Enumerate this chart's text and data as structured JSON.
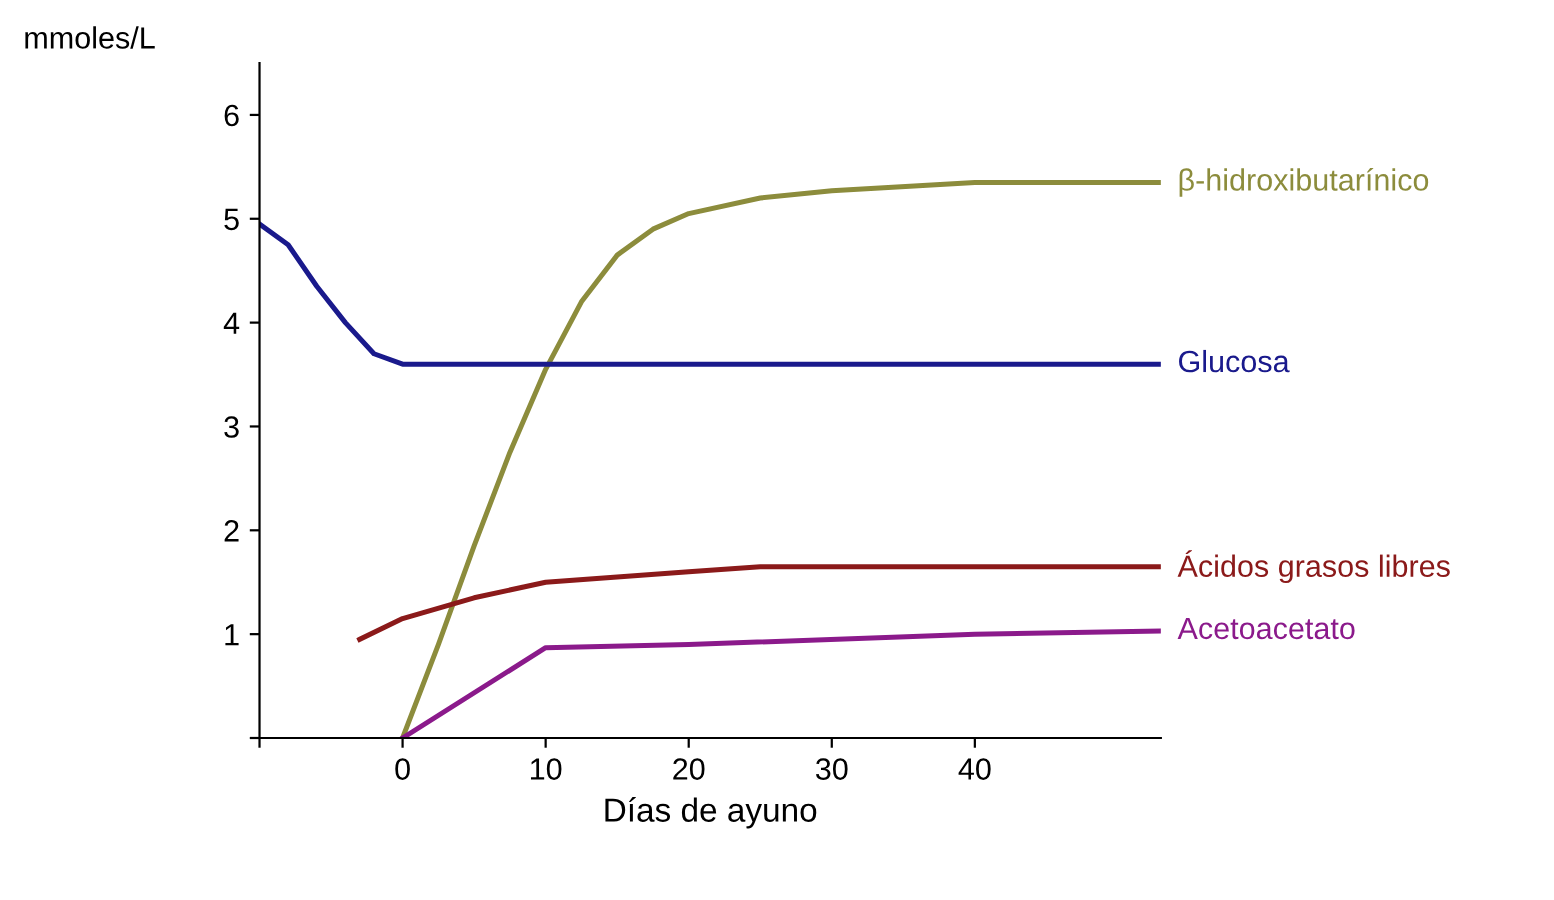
{
  "chart_data": {
    "type": "line",
    "xlabel": "Días de ayuno",
    "ylabel": "mmoles/L",
    "xlim": [
      -10,
      53
    ],
    "ylim": [
      0,
      6.5
    ],
    "xticks": [
      {
        "value": -10,
        "label": null
      },
      0,
      10,
      20,
      30,
      40
    ],
    "yticks": [
      {
        "value": 0,
        "label": null
      },
      1,
      2,
      3,
      4,
      5,
      6
    ],
    "grid": false,
    "legend": false,
    "marker": "none",
    "line_style": "solid",
    "series": [
      {
        "name": "β-hidroxibutarínico",
        "color": "#8c8c3c",
        "x": [
          0,
          2.5,
          5,
          7.5,
          10,
          12.5,
          15,
          17.5,
          20,
          25,
          30,
          40,
          53
        ],
        "values": [
          0,
          0.9,
          1.85,
          2.75,
          3.55,
          4.2,
          4.65,
          4.9,
          5.05,
          5.2,
          5.27,
          5.35,
          5.35
        ]
      },
      {
        "name": "Glucosa",
        "color": "#1a1a8c",
        "x": [
          -10,
          -8,
          -6,
          -4,
          -2,
          0,
          53
        ],
        "values": [
          4.95,
          4.75,
          4.35,
          4.0,
          3.7,
          3.6,
          3.6
        ]
      },
      {
        "name": "Ácidos grasos libres",
        "color": "#8b1a1a",
        "x": [
          -3,
          0,
          5,
          10,
          20,
          25,
          53
        ],
        "values": [
          0.95,
          1.15,
          1.35,
          1.5,
          1.6,
          1.65,
          1.65
        ]
      },
      {
        "name": "Acetoacetato",
        "color": "#8b1a8b",
        "x": [
          0,
          10,
          20,
          40,
          53
        ],
        "values": [
          0,
          0.87,
          0.9,
          1.0,
          1.03
        ]
      }
    ]
  }
}
